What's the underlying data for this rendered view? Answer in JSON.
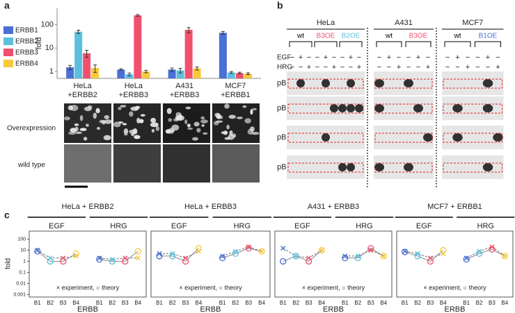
{
  "panel_labels": [
    "a",
    "b",
    "c"
  ],
  "chart_data": [
    {
      "type": "bar",
      "ylabel": "fold",
      "log_scale": true,
      "legend": "left",
      "categories": [
        "HeLa\n+ERBB2",
        "HeLa\n+ERBB3",
        "A431\n+ERBB3",
        "MCF7\n+ERBB1"
      ],
      "series": [
        {
          "name": "ERBB1",
          "color": "#4a6fd6",
          "values": [
            1.5,
            1.2,
            1.2,
            45
          ],
          "errors": [
            0.3,
            0.1,
            0.2,
            6
          ]
        },
        {
          "name": "ERBB2",
          "color": "#5bc0de",
          "values": [
            50,
            0.75,
            1.1,
            0.9
          ],
          "errors": [
            8,
            0.1,
            0.25,
            0.08
          ]
        },
        {
          "name": "ERBB3",
          "color": "#f0506e",
          "values": [
            6,
            250,
            60,
            0.85
          ],
          "errors": [
            2,
            20,
            15,
            0.07
          ]
        },
        {
          "name": "ERBB4",
          "color": "#f6c83c",
          "values": [
            1.4,
            1.0,
            1.35,
            0.8
          ],
          "errors": [
            0.5,
            0.12,
            0.2,
            0.07
          ]
        }
      ],
      "ylim": [
        0.5,
        500
      ],
      "yticks": [
        1,
        10,
        100
      ]
    },
    {
      "type": "line",
      "title": "HeLa + ERBB2",
      "ylabel": "fold",
      "xlabel": "ERBB",
      "log_scale": true,
      "groups": [
        "EGF",
        "HRG"
      ],
      "categories": [
        "B1",
        "B2",
        "B3",
        "B4",
        "B1",
        "B2",
        "B3",
        "B4"
      ],
      "colors": [
        "#4a6fd6",
        "#5bc0de",
        "#f0506e",
        "#f6c83c"
      ],
      "series": [
        {
          "values": [
            10,
            2,
            2,
            3,
            2,
            1.5,
            2,
            2
          ]
        },
        {
          "values": [
            8,
            1,
            1,
            5,
            1.5,
            1,
            1,
            8
          ]
        }
      ],
      "annotation": "× experiment, ○ theory",
      "ylim": [
        0.0008,
        300
      ],
      "yticks": [
        100,
        10,
        1,
        0.1,
        0.01,
        0.001
      ]
    },
    {
      "type": "line",
      "title": "HeLa + ERBB3",
      "xlabel": "ERBB",
      "log_scale": true,
      "groups": [
        "EGF",
        "HRG"
      ],
      "categories": [
        "B1",
        "B2",
        "B3",
        "B4",
        "B1",
        "B2",
        "B3",
        "B4"
      ],
      "colors": [
        "#4a6fd6",
        "#5bc0de",
        "#f0506e",
        "#f6c83c"
      ],
      "series": [
        {
          "values": [
            5,
            5,
            2,
            8,
            3,
            8,
            20,
            8
          ]
        },
        {
          "values": [
            3,
            3,
            1,
            15,
            2,
            5,
            15,
            8
          ]
        }
      ],
      "annotation": "× experiment, ○ theory",
      "ylim": [
        0.0008,
        300
      ]
    },
    {
      "type": "line",
      "title": "A431 + ERBB3",
      "xlabel": "ERBB",
      "log_scale": true,
      "groups": [
        "EGF",
        "HRG"
      ],
      "categories": [
        "B1",
        "B2",
        "B3",
        "B4",
        "B1",
        "B2",
        "B3",
        "B4"
      ],
      "colors": [
        "#4a6fd6",
        "#5bc0de",
        "#f0506e",
        "#f6c83c"
      ],
      "series": [
        {
          "values": [
            15,
            3,
            2,
            10,
            3,
            3,
            10,
            3
          ]
        },
        {
          "values": [
            1,
            3,
            1,
            10,
            2,
            2,
            15,
            3
          ]
        }
      ],
      "annotation": "× experiment, ○ theory",
      "ylim": [
        0.0008,
        300
      ]
    },
    {
      "type": "line",
      "title": "MCF7 + ERBB1",
      "xlabel": "ERBB",
      "log_scale": true,
      "groups": [
        "EGF",
        "HRG"
      ],
      "categories": [
        "B1",
        "B2",
        "B3",
        "B4",
        "B1",
        "B2",
        "B3",
        "B4"
      ],
      "colors": [
        "#4a6fd6",
        "#5bc0de",
        "#f0506e",
        "#f6c83c"
      ],
      "series": [
        {
          "values": [
            8,
            5,
            2,
            5,
            2,
            8,
            20,
            3
          ]
        },
        {
          "values": [
            7,
            3,
            1,
            10,
            1.5,
            5,
            12,
            3
          ]
        }
      ],
      "annotation": "× experiment, ○ theory",
      "ylim": [
        0.0008,
        300
      ]
    }
  ],
  "images": {
    "row_labels": [
      "Overexpression",
      "wild type"
    ]
  },
  "blot": {
    "stimuli": [
      "EGF",
      "HRG"
    ],
    "rows": [
      "pB1",
      "pB2",
      "pB3",
      "pB4"
    ],
    "cell_lines": [
      {
        "name": "HeLa",
        "groups": [
          {
            "label": "wt",
            "color": "#000000"
          },
          {
            "label": "B3OE",
            "color": "#f0506e"
          },
          {
            "label": "B2OE",
            "color": "#5bc0de"
          }
        ],
        "egf": [
          "−",
          "+",
          "−",
          "−",
          "+",
          "−",
          "−",
          "+",
          "−"
        ],
        "hrg": [
          "−",
          "−",
          "+",
          "−",
          "−",
          "+",
          "−",
          "−",
          "+"
        ]
      },
      {
        "name": "A431",
        "groups": [
          {
            "label": "wt",
            "color": "#000000"
          },
          {
            "label": "B3OE",
            "color": "#f0506e"
          }
        ],
        "egf": [
          "−",
          "+",
          "−",
          "−",
          "+",
          "−"
        ],
        "hrg": [
          "−",
          "−",
          "+",
          "−",
          "−",
          "+"
        ]
      },
      {
        "name": "MCF7",
        "groups": [
          {
            "label": "wt",
            "color": "#000000"
          },
          {
            "label": "B1OE",
            "color": "#4a6fd6"
          }
        ],
        "egf": [
          "−",
          "+",
          "−",
          "−",
          "+",
          "−"
        ],
        "hrg": [
          "−",
          "−",
          "+",
          "−",
          "−",
          "+"
        ]
      }
    ]
  }
}
